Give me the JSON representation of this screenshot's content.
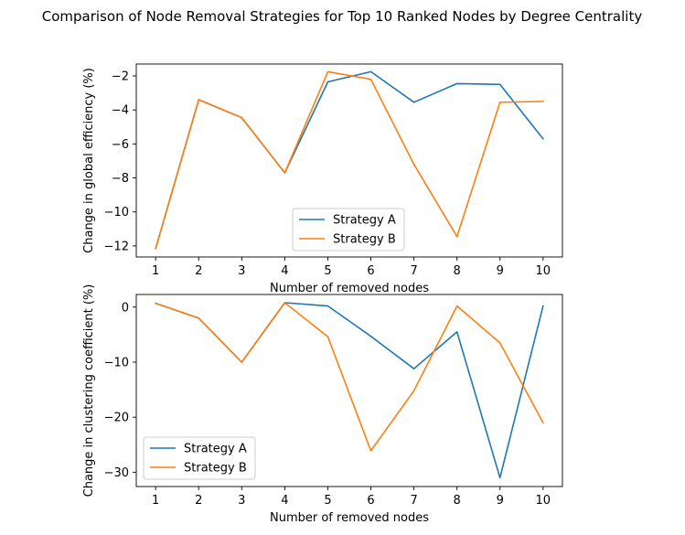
{
  "figure": {
    "title": "Comparison of Node Removal Strategies for Top 10 Ranked Nodes by Degree Centrality"
  },
  "colors": {
    "strategy_a": "#1f77b4",
    "strategy_b": "#ff7f0e"
  },
  "chart_data": [
    {
      "type": "line",
      "title": "",
      "xlabel": "Number of removed nodes",
      "ylabel": "Change in global efficiency (%)",
      "x": [
        1,
        2,
        3,
        4,
        5,
        6,
        7,
        8,
        9,
        10
      ],
      "xticks": [
        "1",
        "2",
        "3",
        "4",
        "5",
        "6",
        "7",
        "8",
        "9",
        "10"
      ],
      "ylim": [
        -12.65,
        -1.3
      ],
      "yticks": [
        -12,
        -10,
        -8,
        -6,
        -4,
        -2
      ],
      "ytick_labels": [
        "−12",
        "−10",
        "−8",
        "−6",
        "−4",
        "−2"
      ],
      "grid": false,
      "legend": "lower center",
      "series": [
        {
          "name": "Strategy A",
          "values": [
            -12.15,
            -3.4,
            -4.45,
            -7.7,
            -2.35,
            -1.75,
            -3.55,
            -2.45,
            -2.5,
            -5.7
          ]
        },
        {
          "name": "Strategy B",
          "values": [
            -12.15,
            -3.4,
            -4.45,
            -7.7,
            -1.75,
            -2.2,
            -7.2,
            -11.45,
            -3.55,
            -3.5
          ]
        }
      ]
    },
    {
      "type": "line",
      "title": "",
      "xlabel": "Number of removed nodes",
      "ylabel": "Change in clustering coefficient (%)",
      "x": [
        1,
        2,
        3,
        4,
        5,
        6,
        7,
        8,
        9,
        10
      ],
      "xticks": [
        "1",
        "2",
        "3",
        "4",
        "5",
        "6",
        "7",
        "8",
        "9",
        "10"
      ],
      "ylim": [
        -32.6,
        2.3
      ],
      "yticks": [
        -30,
        -20,
        -10,
        0
      ],
      "ytick_labels": [
        "−30",
        "−20",
        "−10",
        "0"
      ],
      "grid": false,
      "legend": "lower left",
      "series": [
        {
          "name": "Strategy A",
          "values": [
            0.7,
            -2.0,
            -10.0,
            0.8,
            0.2,
            -5.3,
            -11.2,
            -4.5,
            -31.0,
            0.2
          ]
        },
        {
          "name": "Strategy B",
          "values": [
            0.7,
            -2.0,
            -10.0,
            0.8,
            -5.4,
            -26.1,
            -15.2,
            0.2,
            -6.5,
            -21.0
          ]
        }
      ]
    }
  ]
}
